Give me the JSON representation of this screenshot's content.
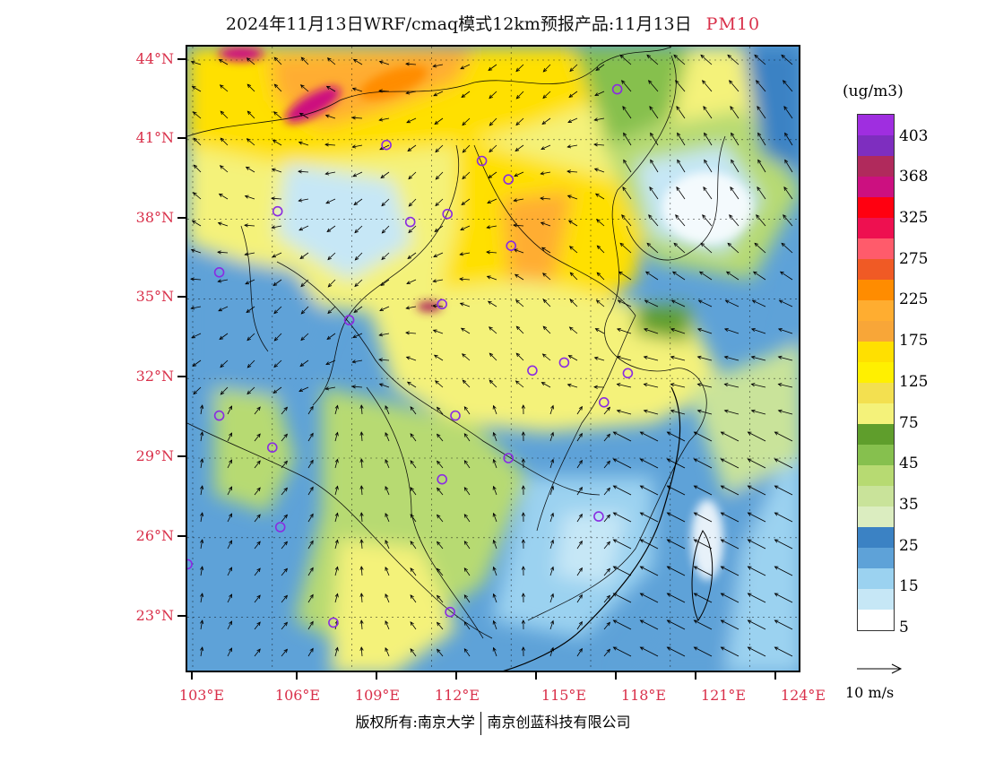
{
  "title": {
    "main": "2024年11月13日WRF/cmaq模式12km预报产品:11月13日",
    "pollutant": "PM10"
  },
  "axes": {
    "lat_labels": [
      "44°N",
      "41°N",
      "38°N",
      "35°N",
      "32°N",
      "29°N",
      "26°N",
      "23°N"
    ],
    "lon_labels": [
      "103°E",
      "106°E",
      "109°E",
      "112°E",
      "115°E",
      "118°E",
      "121°E",
      "124°E"
    ]
  },
  "legend": {
    "unit": "(ug/m3)",
    "colors": [
      "#9f2ee0",
      "#7e2ebf",
      "#b02a5c",
      "#cc1080",
      "#ff0010",
      "#ee1050",
      "#ff5b6b",
      "#f05a25",
      "#ff8c00",
      "#ffad30",
      "#f8a638",
      "#ffe000",
      "#fff000",
      "#f3e050",
      "#f4f27a",
      "#5f9e2c",
      "#86c04e",
      "#b7da72",
      "#c9e39a",
      "#dbedc0",
      "#3b82c4",
      "#5ea2d8",
      "#9bd2f0",
      "#c6e7f6",
      "#ffffff"
    ],
    "labels": [
      "403",
      "368",
      "325",
      "275",
      "225",
      "175",
      "125",
      "75",
      "45",
      "35",
      "25",
      "15",
      "5"
    ]
  },
  "wind_scale": {
    "label": "10 m/s"
  },
  "copyright": {
    "left": "版权所有:南京大学",
    "right": "南京创蓝科技有限公司"
  },
  "cities": [
    {
      "lon": 119.0,
      "lat": 42.9
    },
    {
      "lon": 110.3,
      "lat": 40.8
    },
    {
      "lon": 113.9,
      "lat": 40.2
    },
    {
      "lon": 114.9,
      "lat": 39.5
    },
    {
      "lon": 106.2,
      "lat": 38.3
    },
    {
      "lon": 111.2,
      "lat": 37.9
    },
    {
      "lon": 112.6,
      "lat": 38.2
    },
    {
      "lon": 115.0,
      "lat": 37.0
    },
    {
      "lon": 104.0,
      "lat": 36.0
    },
    {
      "lon": 112.4,
      "lat": 34.8
    },
    {
      "lon": 108.9,
      "lat": 34.2
    },
    {
      "lon": 117.0,
      "lat": 32.6
    },
    {
      "lon": 115.8,
      "lat": 32.3
    },
    {
      "lon": 119.4,
      "lat": 32.2
    },
    {
      "lon": 118.5,
      "lat": 31.1
    },
    {
      "lon": 104.0,
      "lat": 30.6
    },
    {
      "lon": 112.9,
      "lat": 30.6
    },
    {
      "lon": 106.0,
      "lat": 29.4
    },
    {
      "lon": 114.9,
      "lat": 29.0
    },
    {
      "lon": 112.4,
      "lat": 28.2
    },
    {
      "lon": 106.3,
      "lat": 26.4
    },
    {
      "lon": 118.3,
      "lat": 26.8
    },
    {
      "lon": 102.8,
      "lat": 25.0
    },
    {
      "lon": 112.7,
      "lat": 23.2
    },
    {
      "lon": 108.3,
      "lat": 22.8
    }
  ]
}
